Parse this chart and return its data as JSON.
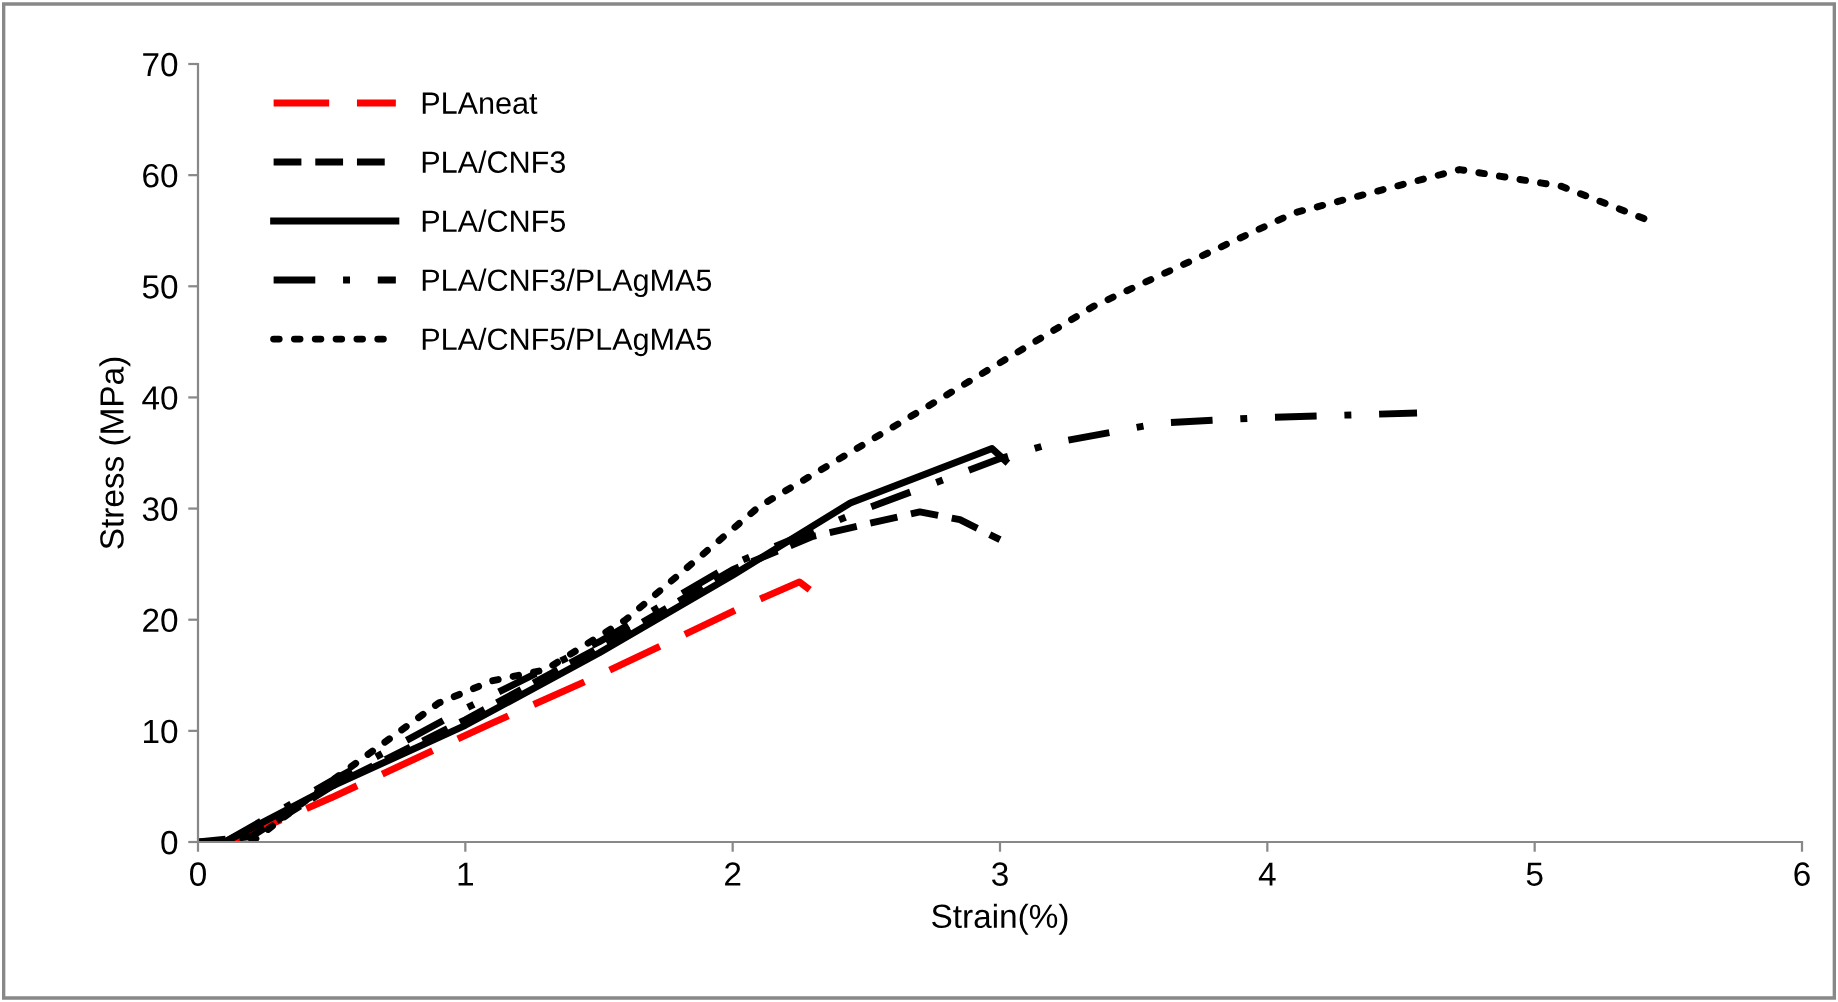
{
  "chart_data": {
    "type": "line",
    "xlabel": "Strain(%)",
    "ylabel": "Stress (MPa)",
    "xlim": [
      0,
      6
    ],
    "ylim": [
      0,
      70
    ],
    "xticks": [
      0,
      1,
      2,
      3,
      4,
      5,
      6
    ],
    "yticks": [
      0,
      10,
      20,
      30,
      40,
      50,
      60,
      70
    ],
    "grid": false,
    "legend": "top left",
    "marker": "none",
    "series": [
      {
        "name": "PLAneat",
        "color": "#ff0000",
        "line_style": "longdash",
        "x": [
          0.12,
          0.5,
          1.1,
          1.5,
          2.04,
          2.25,
          2.31
        ],
        "values": [
          0,
          4,
          10.7,
          15,
          21.2,
          23.4,
          22.3
        ]
      },
      {
        "name": "PLA/CNF3",
        "color": "#000000",
        "line_style": "dashed",
        "x": [
          0,
          0.2,
          0.5,
          1,
          1.5,
          2,
          2.3,
          2.7,
          2.85,
          3.0
        ],
        "values": [
          0,
          0.5,
          5,
          11,
          17.5,
          24.5,
          27.5,
          29.7,
          29,
          27.2
        ]
      },
      {
        "name": "PLA/CNF5",
        "color": "#000000",
        "line_style": "solid",
        "x": [
          0,
          0.1,
          0.3,
          0.5,
          1,
          1.5,
          2,
          2.44,
          2.97,
          3.02
        ],
        "values": [
          0,
          0,
          2.5,
          5,
          10.5,
          17,
          24,
          30.5,
          35.4,
          34.3
        ]
      },
      {
        "name": "PLA/CNF3/PLAgMA5",
        "color": "#000000",
        "line_style": "dashdot",
        "x": [
          0.1,
          0.5,
          1,
          1.5,
          2,
          2.5,
          3.0,
          3.2,
          3.6,
          4,
          4.56
        ],
        "values": [
          0,
          5.5,
          12,
          18,
          25,
          30,
          34.5,
          35.9,
          37.7,
          38.2,
          38.6
        ]
      },
      {
        "name": "PLA/CNF5/PLAgMA5",
        "color": "#000000",
        "line_style": "dotted",
        "x": [
          0.2,
          0.5,
          0.9,
          1.1,
          1.3,
          1.6,
          2.1,
          2.73,
          3.35,
          4.1,
          4.72,
          5.1,
          5.44
        ],
        "values": [
          0,
          5.5,
          12.5,
          14.5,
          15.5,
          20,
          30.2,
          39.2,
          48.2,
          56.6,
          60.5,
          59,
          55.8
        ]
      }
    ]
  }
}
